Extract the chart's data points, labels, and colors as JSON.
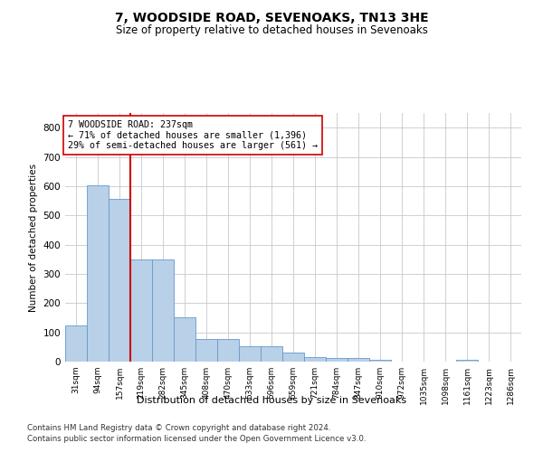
{
  "title1": "7, WOODSIDE ROAD, SEVENOAKS, TN13 3HE",
  "title2": "Size of property relative to detached houses in Sevenoaks",
  "xlabel": "Distribution of detached houses by size in Sevenoaks",
  "ylabel": "Number of detached properties",
  "categories": [
    "31sqm",
    "94sqm",
    "157sqm",
    "219sqm",
    "282sqm",
    "345sqm",
    "408sqm",
    "470sqm",
    "533sqm",
    "596sqm",
    "659sqm",
    "721sqm",
    "784sqm",
    "847sqm",
    "910sqm",
    "972sqm",
    "1035sqm",
    "1098sqm",
    "1161sqm",
    "1223sqm",
    "1286sqm"
  ],
  "values": [
    123,
    602,
    557,
    348,
    348,
    150,
    78,
    78,
    52,
    52,
    30,
    15,
    13,
    13,
    5,
    0,
    0,
    0,
    5,
    0,
    0
  ],
  "bar_color": "#b8d0e8",
  "bar_edge_color": "#6699cc",
  "vline_color": "#cc0000",
  "vline_pos": 2.5,
  "annotation_text": "7 WOODSIDE ROAD: 237sqm\n← 71% of detached houses are smaller (1,396)\n29% of semi-detached houses are larger (561) →",
  "annotation_box_color": "#ffffff",
  "annotation_box_edge_color": "#cc0000",
  "ylim": [
    0,
    850
  ],
  "yticks": [
    0,
    100,
    200,
    300,
    400,
    500,
    600,
    700,
    800
  ],
  "footer1": "Contains HM Land Registry data © Crown copyright and database right 2024.",
  "footer2": "Contains public sector information licensed under the Open Government Licence v3.0.",
  "bg_color": "#ffffff",
  "grid_color": "#c8c8d0"
}
